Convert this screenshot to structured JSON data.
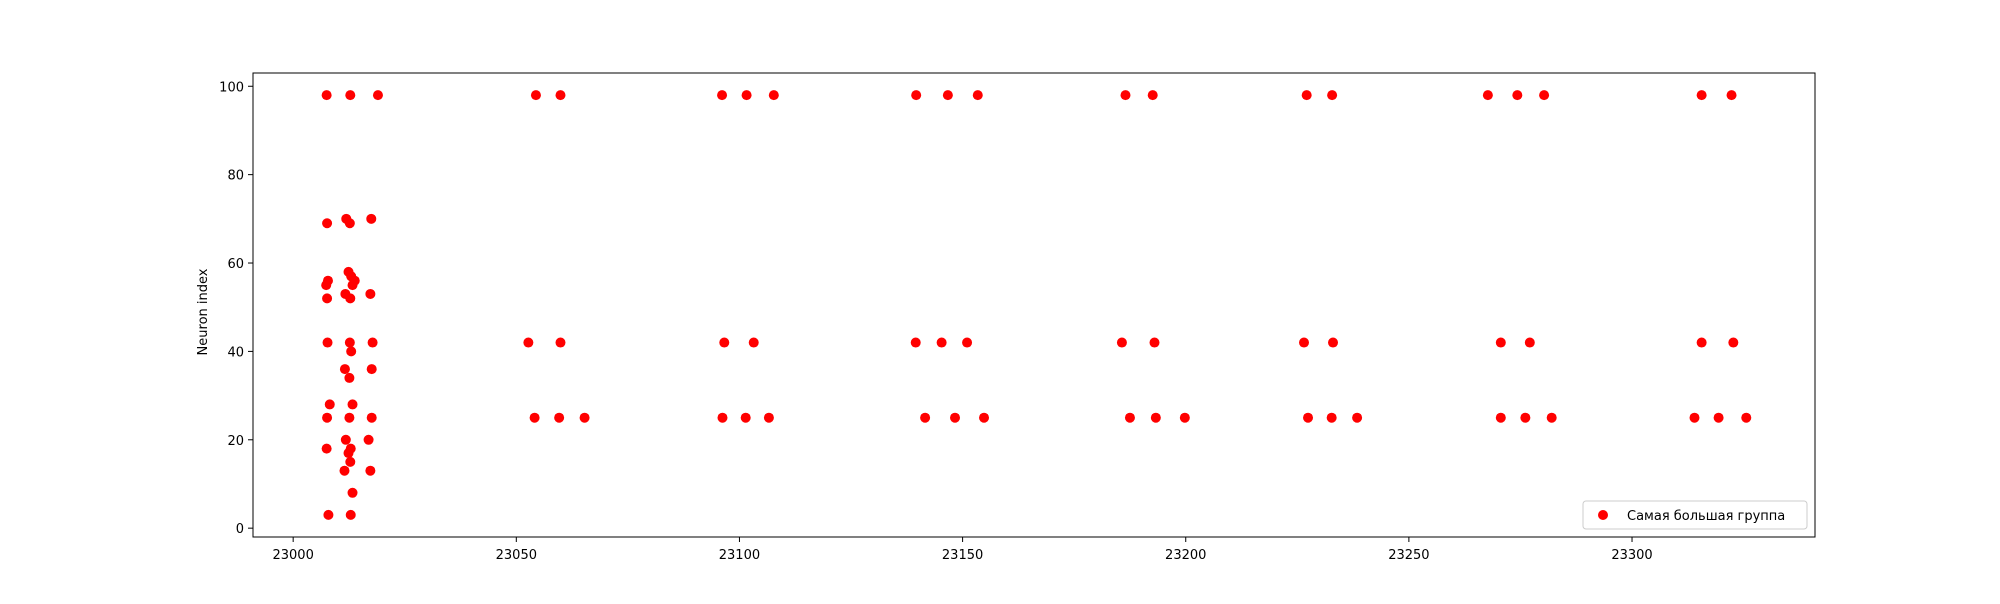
{
  "chart_data": {
    "type": "scatter",
    "title": "",
    "xlabel": "",
    "ylabel": "Neuron index",
    "xlim": [
      22991,
      23341
    ],
    "ylim": [
      -2,
      103
    ],
    "xticks": [
      23000,
      23050,
      23100,
      23150,
      23200,
      23250,
      23300
    ],
    "xtick_labels": [
      "23000",
      "23050",
      "23100",
      "23150",
      "23200",
      "23250",
      "23300"
    ],
    "yticks": [
      0,
      20,
      40,
      60,
      80,
      100
    ],
    "ytick_labels": [
      "0",
      "20",
      "40",
      "60",
      "80",
      "100"
    ],
    "grid": false,
    "legend": {
      "position": "lower-right",
      "entries": [
        "Самая большая группа"
      ]
    },
    "series": [
      {
        "name": "Самая большая группа",
        "color": "#ff0000",
        "points": [
          [
            23007.5,
            98
          ],
          [
            23012.8,
            98
          ],
          [
            23019.0,
            98
          ],
          [
            23007.6,
            69
          ],
          [
            23011.9,
            70
          ],
          [
            23012.7,
            69
          ],
          [
            23017.5,
            70
          ],
          [
            23012.4,
            58
          ],
          [
            23013.0,
            57
          ],
          [
            23013.8,
            56
          ],
          [
            23013.3,
            55
          ],
          [
            23007.8,
            56
          ],
          [
            23007.4,
            55
          ],
          [
            23007.6,
            52
          ],
          [
            23011.7,
            53
          ],
          [
            23012.8,
            52
          ],
          [
            23017.3,
            53
          ],
          [
            23007.7,
            42
          ],
          [
            23012.7,
            42
          ],
          [
            23013.0,
            40
          ],
          [
            23017.8,
            42
          ],
          [
            23011.6,
            36
          ],
          [
            23017.6,
            36
          ],
          [
            23012.6,
            34
          ],
          [
            23008.2,
            28
          ],
          [
            23013.3,
            28
          ],
          [
            23007.6,
            25
          ],
          [
            23012.6,
            25
          ],
          [
            23017.6,
            25
          ],
          [
            23011.8,
            20
          ],
          [
            23016.9,
            20
          ],
          [
            23012.9,
            18
          ],
          [
            23012.4,
            17
          ],
          [
            23012.8,
            15
          ],
          [
            23007.5,
            18
          ],
          [
            23011.5,
            13
          ],
          [
            23017.3,
            13
          ],
          [
            23013.3,
            8
          ],
          [
            23007.9,
            3
          ],
          [
            23012.9,
            3
          ],
          [
            23054.4,
            98
          ],
          [
            23059.9,
            98
          ],
          [
            23052.7,
            42
          ],
          [
            23059.9,
            42
          ],
          [
            23054.1,
            25
          ],
          [
            23059.6,
            25
          ],
          [
            23065.3,
            25
          ],
          [
            23096.1,
            98
          ],
          [
            23101.6,
            98
          ],
          [
            23107.7,
            98
          ],
          [
            23096.6,
            42
          ],
          [
            23103.2,
            42
          ],
          [
            23096.2,
            25
          ],
          [
            23101.4,
            25
          ],
          [
            23106.6,
            25
          ],
          [
            23139.6,
            98
          ],
          [
            23146.7,
            98
          ],
          [
            23153.4,
            98
          ],
          [
            23139.5,
            42
          ],
          [
            23145.3,
            42
          ],
          [
            23151.0,
            42
          ],
          [
            23141.6,
            25
          ],
          [
            23148.3,
            25
          ],
          [
            23154.8,
            25
          ],
          [
            23186.5,
            98
          ],
          [
            23192.6,
            98
          ],
          [
            23185.7,
            42
          ],
          [
            23193.0,
            42
          ],
          [
            23187.5,
            25
          ],
          [
            23193.3,
            25
          ],
          [
            23199.8,
            25
          ],
          [
            23227.1,
            98
          ],
          [
            23232.8,
            98
          ],
          [
            23226.5,
            42
          ],
          [
            23233.0,
            42
          ],
          [
            23227.4,
            25
          ],
          [
            23232.7,
            25
          ],
          [
            23238.4,
            25
          ],
          [
            23267.7,
            98
          ],
          [
            23274.3,
            98
          ],
          [
            23280.3,
            98
          ],
          [
            23270.6,
            42
          ],
          [
            23277.1,
            42
          ],
          [
            23270.6,
            25
          ],
          [
            23276.1,
            25
          ],
          [
            23282.0,
            25
          ],
          [
            23315.6,
            98
          ],
          [
            23322.3,
            98
          ],
          [
            23315.6,
            42
          ],
          [
            23322.7,
            42
          ],
          [
            23314.0,
            25
          ],
          [
            23319.4,
            25
          ],
          [
            23325.6,
            25
          ]
        ]
      }
    ]
  }
}
